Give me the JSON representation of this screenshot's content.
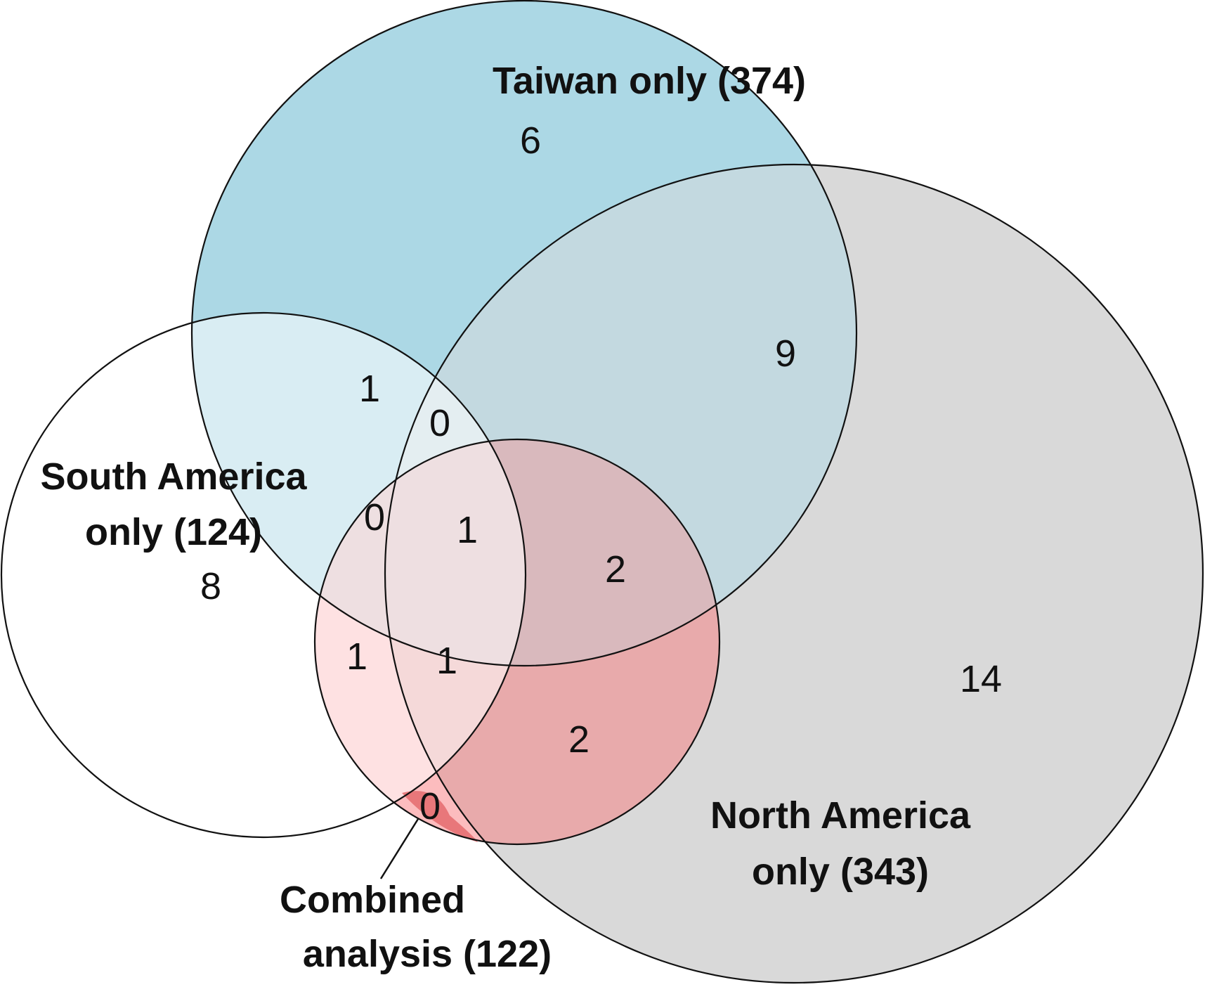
{
  "diagram": {
    "type": "venn",
    "colors": {
      "taiwan": "#acd8e5",
      "north_america": "#d9d9d9",
      "combined": "#fcbcbe",
      "south_america": "#ffffff",
      "outline": "#111111"
    },
    "sets": {
      "taiwan": {
        "label": "Taiwan only (374)"
      },
      "south_america": {
        "label_line1": "South America",
        "label_line2": "only (124)"
      },
      "north_america": {
        "label_line1": "North America",
        "label_line2": "only (343)"
      },
      "combined": {
        "label_line1": "Combined",
        "label_line2": "analysis (122)"
      }
    },
    "regions": {
      "taiwan_only": "6",
      "taiwan_north": "9",
      "taiwan_south": "1",
      "taiwan_south_north": "0",
      "taiwan_south_combined": "0",
      "all_four": "1",
      "taiwan_north_combined": "2",
      "south_only": "8",
      "south_combined": "1",
      "south_north_combined": "1",
      "north_combined": "2",
      "north_only": "14",
      "south_north_combined_outside_taiwan": "0"
    }
  }
}
